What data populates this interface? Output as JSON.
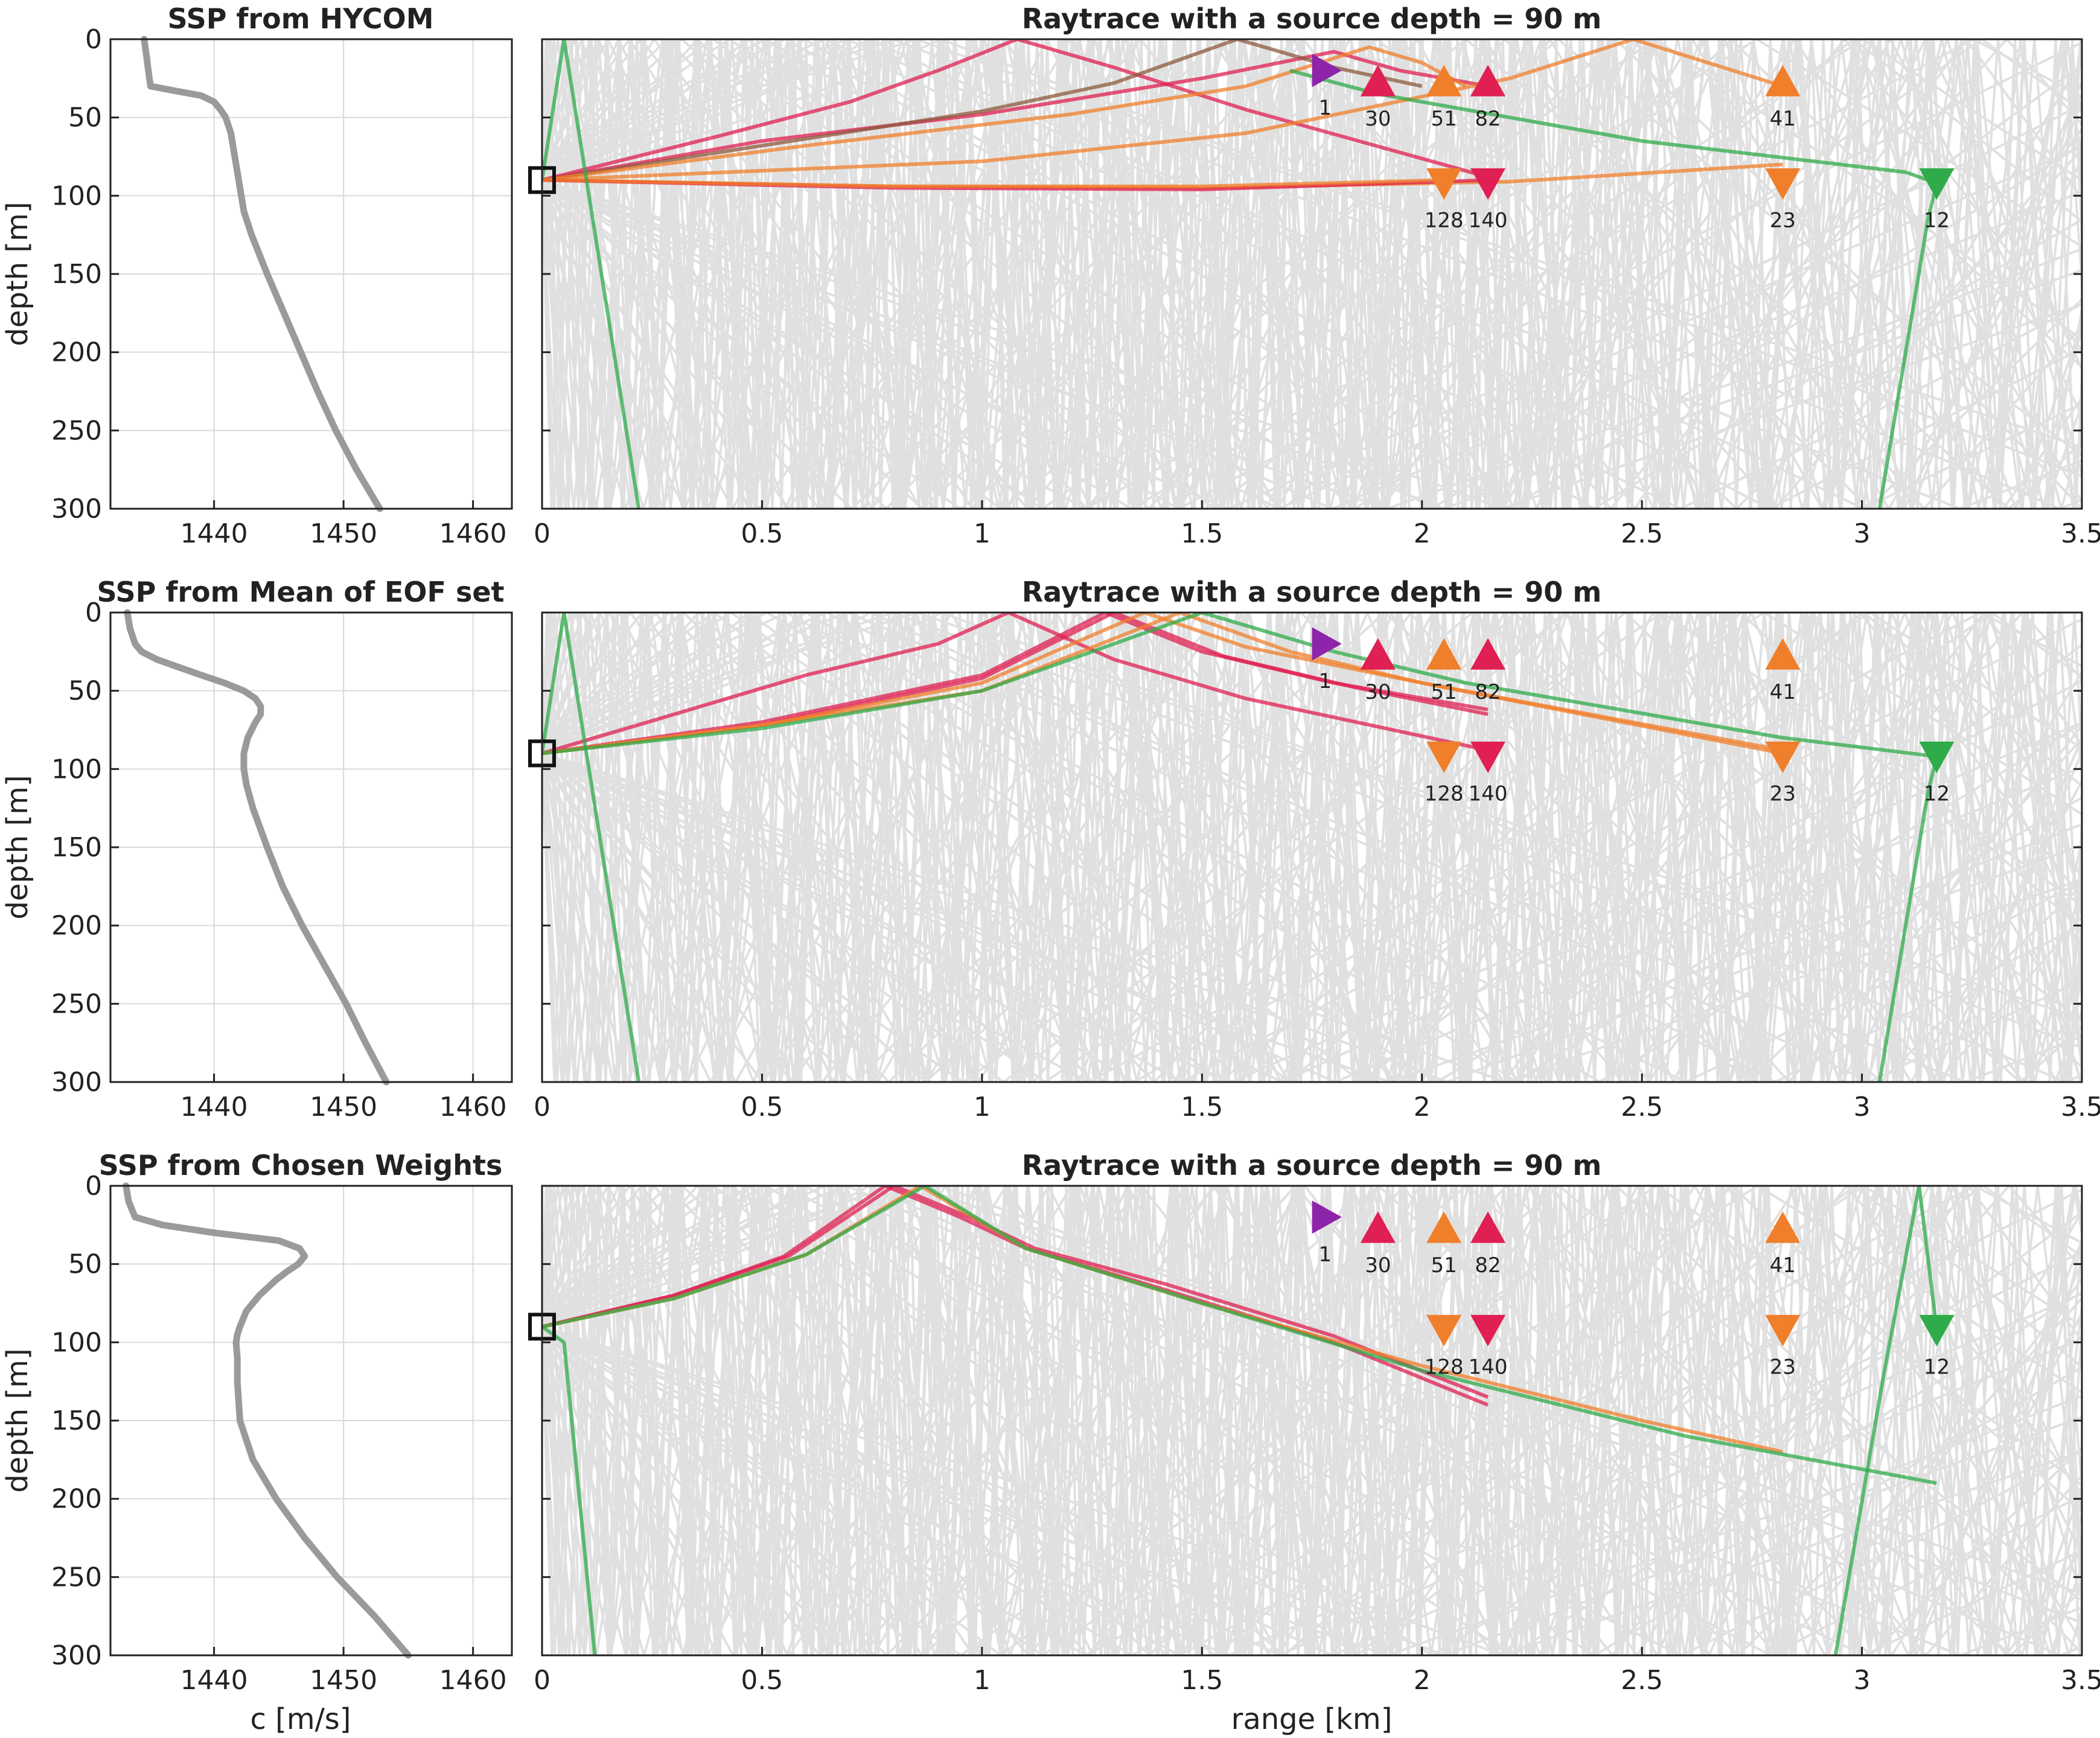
{
  "colors": {
    "ssp_line": "#9a9a9a",
    "grid": "#d9d9d9",
    "bg_rays": "#c8c8c8",
    "purple": "#8e24aa",
    "crimson": "#e01f52",
    "orange": "#f07f2b",
    "green": "#2fab4a",
    "brown": "#8c5a3c",
    "source_box": "#111111"
  },
  "chart_data": [
    {
      "type": "line",
      "title": "SSP from HYCOM",
      "xlabel": "",
      "ylabel": "depth [m]",
      "xlim": [
        1432,
        1463
      ],
      "ylim": [
        0,
        300
      ],
      "y_reversed": true,
      "grid": true,
      "xticks": [
        1440,
        1450,
        1460
      ],
      "yticks": [
        0,
        50,
        100,
        150,
        200,
        250,
        300
      ],
      "series": [
        {
          "depth": [
            0,
            12,
            25,
            30,
            33,
            36,
            40,
            45,
            50,
            55,
            60,
            70,
            80,
            90,
            100,
            110,
            125,
            150,
            175,
            200,
            225,
            250,
            275,
            300
          ],
          "c": [
            1434.6,
            1434.8,
            1435.0,
            1435.1,
            1437.0,
            1439.0,
            1440.0,
            1440.5,
            1440.9,
            1441.1,
            1441.3,
            1441.5,
            1441.7,
            1441.9,
            1442.1,
            1442.3,
            1442.9,
            1444.1,
            1445.4,
            1446.7,
            1448.0,
            1449.4,
            1451.0,
            1452.8
          ]
        }
      ]
    },
    {
      "type": "line",
      "title": "Raytrace with a source depth = 90 m",
      "xlabel": "",
      "ylabel": "",
      "xlim": [
        0,
        3.5
      ],
      "ylim": [
        0,
        300
      ],
      "y_reversed": true,
      "grid": false,
      "xticks": [
        "0",
        "0.5",
        "1",
        "1.5",
        "2",
        "2.5",
        "3",
        "3.5"
      ],
      "yticks": [
        0,
        50,
        100,
        150,
        200,
        250,
        300
      ],
      "source": {
        "range": 0,
        "depth": 90
      },
      "markers": [
        {
          "label": "1",
          "range": 1.78,
          "depth": 20,
          "shape": "right",
          "color": "purple"
        },
        {
          "label": "30",
          "range": 1.9,
          "depth": 27,
          "shape": "up",
          "color": "crimson"
        },
        {
          "label": "51",
          "range": 2.05,
          "depth": 27,
          "shape": "up",
          "color": "orange"
        },
        {
          "label": "82",
          "range": 2.15,
          "depth": 27,
          "shape": "up",
          "color": "crimson"
        },
        {
          "label": "41",
          "range": 2.82,
          "depth": 27,
          "shape": "up",
          "color": "orange"
        },
        {
          "label": "128",
          "range": 2.05,
          "depth": 92,
          "shape": "down",
          "color": "orange"
        },
        {
          "label": "140",
          "range": 2.15,
          "depth": 92,
          "shape": "down",
          "color": "crimson"
        },
        {
          "label": "23",
          "range": 2.82,
          "depth": 92,
          "shape": "down",
          "color": "orange"
        },
        {
          "label": "12",
          "range": 3.17,
          "depth": 92,
          "shape": "down",
          "color": "green"
        }
      ],
      "rays": [
        {
          "color": "crimson",
          "range": [
            0,
            0.4,
            0.7,
            0.9,
            1.08,
            1.3,
            1.6,
            2.15
          ],
          "depth": [
            90,
            62,
            40,
            20,
            0,
            18,
            45,
            88
          ]
        },
        {
          "color": "crimson",
          "range": [
            0,
            0.5,
            1.0,
            1.5,
            1.8,
            1.95,
            2.15
          ],
          "depth": [
            90,
            65,
            48,
            25,
            8,
            20,
            30
          ]
        },
        {
          "color": "brown",
          "range": [
            0,
            0.5,
            1.0,
            1.3,
            1.58,
            1.8,
            2.0
          ],
          "depth": [
            90,
            68,
            46,
            28,
            0,
            18,
            30
          ]
        },
        {
          "color": "orange",
          "range": [
            0,
            0.6,
            1.2,
            1.6,
            1.88,
            2.0,
            2.1
          ],
          "depth": [
            90,
            68,
            48,
            30,
            5,
            15,
            30
          ]
        },
        {
          "color": "orange",
          "range": [
            0,
            1.0,
            1.6,
            2.2,
            2.48,
            2.65,
            2.82
          ],
          "depth": [
            90,
            78,
            60,
            25,
            0,
            15,
            30
          ]
        },
        {
          "color": "orange",
          "range": [
            0,
            0.8,
            1.5,
            2.2,
            2.82
          ],
          "depth": [
            90,
            94,
            95,
            91,
            80
          ]
        },
        {
          "color": "crimson",
          "range": [
            0,
            0.8,
            1.5,
            2.15
          ],
          "depth": [
            90,
            95,
            96,
            90
          ]
        },
        {
          "color": "orange",
          "range": [
            0,
            0.8,
            1.5,
            2.05
          ],
          "depth": [
            90,
            94,
            94,
            90
          ]
        },
        {
          "color": "green",
          "range": [
            0,
            0.05,
            0.22
          ],
          "depth": [
            90,
            0,
            300
          ]
        },
        {
          "color": "green",
          "range": [
            1.7,
            1.9,
            2.5,
            3.1,
            3.17,
            3.15,
            3.04
          ],
          "depth": [
            20,
            35,
            65,
            85,
            92,
            115,
            300
          ]
        }
      ]
    },
    {
      "type": "line",
      "title": "SSP from Mean of EOF set",
      "xlabel": "",
      "ylabel": "depth [m]",
      "xlim": [
        1432,
        1463
      ],
      "ylim": [
        0,
        300
      ],
      "y_reversed": true,
      "grid": true,
      "xticks": [
        1440,
        1450,
        1460
      ],
      "yticks": [
        0,
        50,
        100,
        150,
        200,
        250,
        300
      ],
      "series": [
        {
          "depth": [
            0,
            10,
            20,
            25,
            30,
            35,
            40,
            45,
            50,
            55,
            60,
            65,
            70,
            80,
            90,
            100,
            110,
            125,
            150,
            175,
            200,
            225,
            250,
            275,
            300
          ],
          "c": [
            1433.3,
            1433.5,
            1433.9,
            1434.4,
            1435.6,
            1437.3,
            1439.0,
            1440.8,
            1442.3,
            1443.2,
            1443.6,
            1443.6,
            1443.2,
            1442.6,
            1442.3,
            1442.3,
            1442.5,
            1443.0,
            1444.1,
            1445.3,
            1446.8,
            1448.5,
            1450.2,
            1451.7,
            1453.3
          ]
        }
      ]
    },
    {
      "type": "line",
      "title": "Raytrace with a source depth = 90 m",
      "xlabel": "",
      "ylabel": "",
      "xlim": [
        0,
        3.5
      ],
      "ylim": [
        0,
        300
      ],
      "y_reversed": true,
      "grid": false,
      "xticks": [
        "0",
        "0.5",
        "1",
        "1.5",
        "2",
        "2.5",
        "3",
        "3.5"
      ],
      "yticks": [
        0,
        50,
        100,
        150,
        200,
        250,
        300
      ],
      "source": {
        "range": 0,
        "depth": 90
      },
      "markers": [
        {
          "label": "1",
          "range": 1.78,
          "depth": 20,
          "shape": "right",
          "color": "purple"
        },
        {
          "label": "30",
          "range": 1.9,
          "depth": 27,
          "shape": "up",
          "color": "crimson"
        },
        {
          "label": "51",
          "range": 2.05,
          "depth": 27,
          "shape": "up",
          "color": "orange"
        },
        {
          "label": "82",
          "range": 2.15,
          "depth": 27,
          "shape": "up",
          "color": "crimson"
        },
        {
          "label": "41",
          "range": 2.82,
          "depth": 27,
          "shape": "up",
          "color": "orange"
        },
        {
          "label": "128",
          "range": 2.05,
          "depth": 92,
          "shape": "down",
          "color": "orange"
        },
        {
          "label": "140",
          "range": 2.15,
          "depth": 92,
          "shape": "down",
          "color": "crimson"
        },
        {
          "label": "23",
          "range": 2.82,
          "depth": 92,
          "shape": "down",
          "color": "orange"
        },
        {
          "label": "12",
          "range": 3.17,
          "depth": 92,
          "shape": "down",
          "color": "green"
        }
      ],
      "rays": [
        {
          "color": "crimson",
          "range": [
            0,
            0.3,
            0.6,
            0.9,
            1.06,
            1.3,
            1.6,
            2.15
          ],
          "depth": [
            90,
            65,
            40,
            20,
            0,
            30,
            55,
            88
          ]
        },
        {
          "color": "crimson",
          "range": [
            0,
            0.5,
            1.0,
            1.28,
            1.5,
            1.8,
            2.15
          ],
          "depth": [
            90,
            70,
            40,
            0,
            25,
            45,
            62
          ]
        },
        {
          "color": "crimson",
          "range": [
            0,
            0.5,
            1.0,
            1.3,
            1.55,
            1.85,
            2.15
          ],
          "depth": [
            90,
            72,
            42,
            0,
            28,
            48,
            65
          ]
        },
        {
          "color": "orange",
          "range": [
            0,
            0.5,
            1.0,
            1.37,
            1.6,
            2.0,
            2.82
          ],
          "depth": [
            90,
            72,
            45,
            0,
            22,
            45,
            90
          ]
        },
        {
          "color": "orange",
          "range": [
            0,
            0.5,
            1.0,
            1.45,
            1.7,
            2.0,
            2.82
          ],
          "depth": [
            90,
            72,
            50,
            0,
            25,
            45,
            88
          ]
        },
        {
          "color": "green",
          "range": [
            0,
            0.5,
            1.0,
            1.5,
            1.8,
            2.1,
            2.82,
            3.17
          ],
          "depth": [
            90,
            74,
            50,
            0,
            25,
            45,
            80,
            92
          ]
        },
        {
          "color": "green",
          "range": [
            0,
            0.05,
            0.22
          ],
          "depth": [
            90,
            0,
            300
          ]
        },
        {
          "color": "green",
          "range": [
            3.17,
            3.15,
            3.04
          ],
          "depth": [
            92,
            115,
            300
          ]
        }
      ]
    },
    {
      "type": "line",
      "title": "SSP from Chosen Weights",
      "xlabel": "c [m/s]",
      "ylabel": "depth [m]",
      "xlim": [
        1432,
        1463
      ],
      "ylim": [
        0,
        300
      ],
      "y_reversed": true,
      "grid": true,
      "xticks": [
        1440,
        1450,
        1460
      ],
      "yticks": [
        0,
        50,
        100,
        150,
        200,
        250,
        300
      ],
      "series": [
        {
          "depth": [
            0,
            10,
            20,
            25,
            30,
            35,
            40,
            45,
            50,
            55,
            60,
            70,
            80,
            90,
            95,
            100,
            110,
            125,
            150,
            175,
            200,
            225,
            250,
            275,
            300
          ],
          "c": [
            1433.2,
            1433.4,
            1433.9,
            1436.0,
            1440.0,
            1445.0,
            1446.6,
            1447.0,
            1446.5,
            1445.6,
            1444.8,
            1443.5,
            1442.5,
            1442.0,
            1441.8,
            1441.7,
            1441.8,
            1441.8,
            1442.0,
            1443.0,
            1444.8,
            1447.0,
            1449.5,
            1452.4,
            1455.0
          ]
        }
      ]
    },
    {
      "type": "line",
      "title": "Raytrace with a source depth = 90 m",
      "xlabel": "range [km]",
      "ylabel": "",
      "xlim": [
        0,
        3.5
      ],
      "ylim": [
        0,
        300
      ],
      "y_reversed": true,
      "grid": false,
      "xticks": [
        "0",
        "0.5",
        "1",
        "1.5",
        "2",
        "2.5",
        "3",
        "3.5"
      ],
      "yticks": [
        0,
        50,
        100,
        150,
        200,
        250,
        300
      ],
      "source": {
        "range": 0,
        "depth": 90
      },
      "markers": [
        {
          "label": "1",
          "range": 1.78,
          "depth": 20,
          "shape": "right",
          "color": "purple"
        },
        {
          "label": "30",
          "range": 1.9,
          "depth": 27,
          "shape": "up",
          "color": "crimson"
        },
        {
          "label": "51",
          "range": 2.05,
          "depth": 27,
          "shape": "up",
          "color": "orange"
        },
        {
          "label": "82",
          "range": 2.15,
          "depth": 27,
          "shape": "up",
          "color": "crimson"
        },
        {
          "label": "41",
          "range": 2.82,
          "depth": 27,
          "shape": "up",
          "color": "orange"
        },
        {
          "label": "128",
          "range": 2.05,
          "depth": 92,
          "shape": "down",
          "color": "orange"
        },
        {
          "label": "140",
          "range": 2.15,
          "depth": 92,
          "shape": "down",
          "color": "crimson"
        },
        {
          "label": "23",
          "range": 2.82,
          "depth": 92,
          "shape": "down",
          "color": "orange"
        },
        {
          "label": "12",
          "range": 3.17,
          "depth": 92,
          "shape": "down",
          "color": "green"
        }
      ],
      "rays": [
        {
          "color": "crimson",
          "range": [
            0,
            0.3,
            0.55,
            0.78,
            0.95,
            1.1,
            1.4,
            1.8,
            2.15
          ],
          "depth": [
            90,
            70,
            45,
            0,
            20,
            40,
            65,
            100,
            140
          ]
        },
        {
          "color": "crimson",
          "range": [
            0,
            0.3,
            0.56,
            0.8,
            0.97,
            1.12,
            1.42,
            1.8,
            2.15
          ],
          "depth": [
            90,
            70,
            45,
            0,
            20,
            40,
            63,
            96,
            135
          ]
        },
        {
          "color": "orange",
          "range": [
            0,
            0.3,
            0.6,
            0.86,
            1.1,
            1.5,
            2.0,
            2.5,
            2.82
          ],
          "depth": [
            90,
            72,
            44,
            0,
            40,
            75,
            115,
            150,
            170
          ]
        },
        {
          "color": "green",
          "range": [
            0,
            0.3,
            0.6,
            0.87,
            1.1,
            1.5,
            2.0,
            2.6,
            3.17
          ],
          "depth": [
            90,
            72,
            44,
            0,
            40,
            75,
            118,
            160,
            190
          ]
        },
        {
          "color": "green",
          "range": [
            0,
            0.05,
            0.12
          ],
          "depth": [
            90,
            100,
            300
          ]
        },
        {
          "color": "green",
          "range": [
            2.94,
            3.05,
            3.13,
            3.17
          ],
          "depth": [
            300,
            120,
            0,
            92
          ]
        }
      ]
    }
  ]
}
